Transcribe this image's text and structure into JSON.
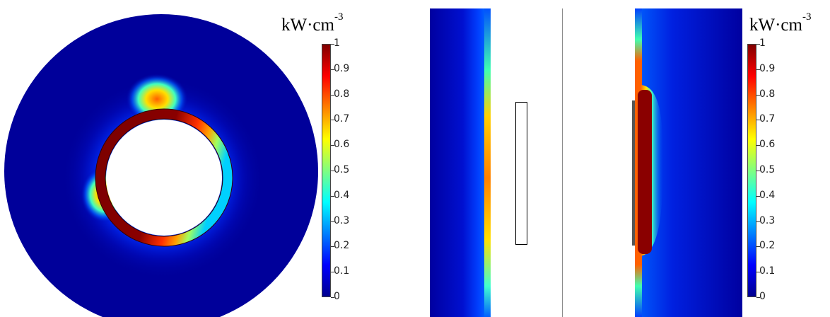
{
  "panels": {
    "left": {
      "unit_base": "kW·cm",
      "unit_exp": "-3"
    },
    "right": {
      "unit_base": "kW·cm",
      "unit_exp": "-3"
    }
  },
  "colorbar": {
    "ticks": [
      "1",
      "0.9",
      "0.8",
      "0.7",
      "0.6",
      "0.5",
      "0.4",
      "0.3",
      "0.2",
      "0.1",
      "0"
    ],
    "colormap": [
      "#00008f",
      "#0000ff",
      "#0080ff",
      "#00ffff",
      "#80ff80",
      "#ffff00",
      "#ff8000",
      "#ff0000",
      "#800000"
    ]
  }
}
